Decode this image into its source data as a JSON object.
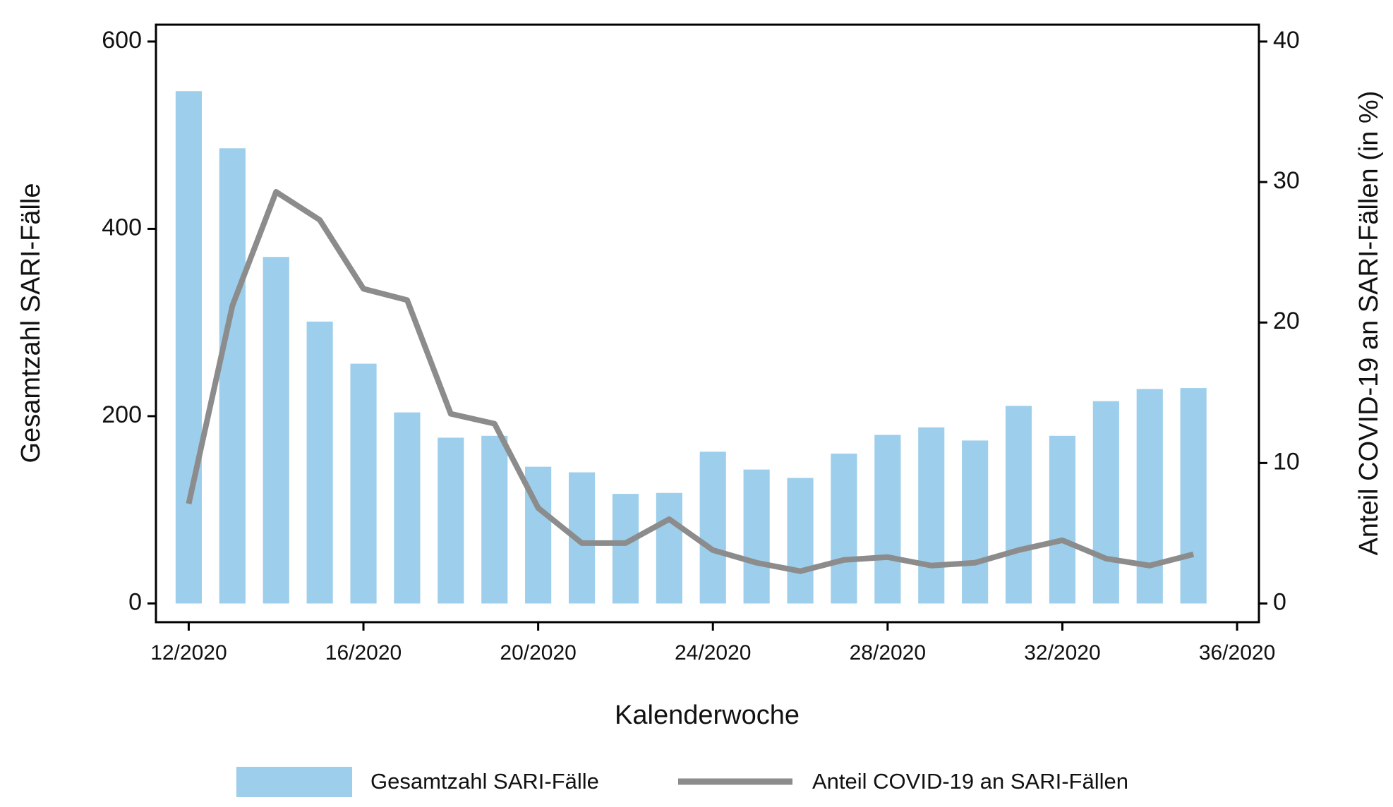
{
  "chart_data": {
    "type": "bar+line",
    "x_label": "Kalenderwoche",
    "y_label": "Gesamtzahl SARI-Fälle",
    "y2_label": "Anteil COVID-19 an SARI-Fällen (in %)",
    "x": [
      12,
      13,
      14,
      15,
      16,
      17,
      18,
      19,
      20,
      21,
      22,
      23,
      24,
      25,
      26,
      27,
      28,
      29,
      30,
      31,
      32,
      33,
      34,
      35
    ],
    "xlim": [
      11.25,
      36.5
    ],
    "xticks": [
      {
        "value": 12,
        "label": "12/2020"
      },
      {
        "value": 16,
        "label": "16/2020"
      },
      {
        "value": 20,
        "label": "20/2020"
      },
      {
        "value": 24,
        "label": "24/2020"
      },
      {
        "value": 28,
        "label": "28/2020"
      },
      {
        "value": 32,
        "label": "32/2020"
      },
      {
        "value": 36,
        "label": "36/2020"
      }
    ],
    "ylim": [
      -20,
      618
    ],
    "yticks": [
      0,
      200,
      400,
      600
    ],
    "y2lim": [
      -1.33,
      41.2
    ],
    "y2ticks": [
      0,
      10,
      20,
      30,
      40
    ],
    "series": [
      {
        "name": "Gesamtzahl SARI-Fälle",
        "type": "bar",
        "color": "#9dceeb",
        "values": [
          547,
          486,
          370,
          301,
          256,
          204,
          177,
          179,
          146,
          140,
          117,
          118,
          162,
          143,
          134,
          160,
          180,
          188,
          174,
          211,
          179,
          216,
          229,
          230
        ]
      },
      {
        "name": "Anteil COVID-19 an SARI-Fällen",
        "type": "line",
        "axis": "y2",
        "color": "#8c8c8c",
        "values": [
          7.1,
          21.2,
          29.3,
          27.3,
          22.4,
          21.6,
          13.5,
          12.8,
          6.8,
          4.3,
          4.3,
          6.0,
          3.8,
          2.9,
          2.3,
          3.1,
          3.3,
          2.7,
          2.9,
          3.8,
          4.5,
          3.2,
          2.7,
          3.5
        ]
      }
    ]
  }
}
